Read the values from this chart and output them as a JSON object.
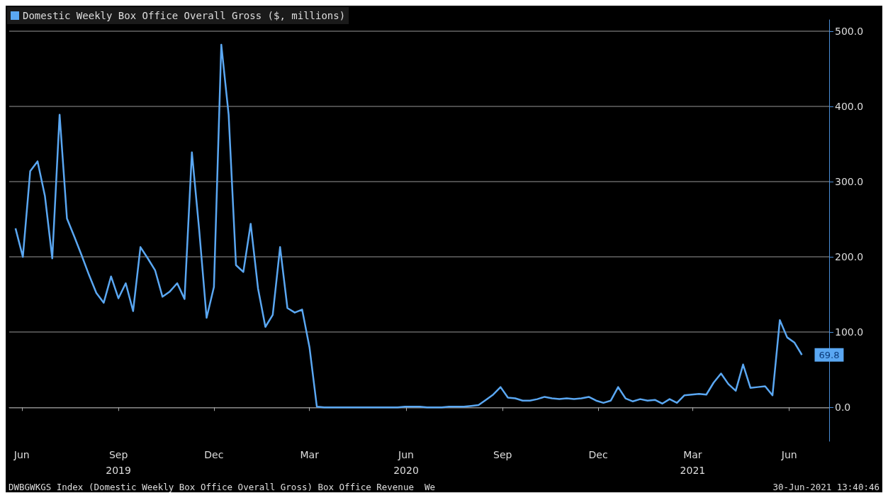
{
  "chart_data": {
    "type": "line",
    "legend": "top left",
    "grid": "y",
    "series": [
      {
        "name": "Domestic Weekly Box Office Overall Gross ($, millions)",
        "color": "#5aa7f2",
        "x": [
          "2019-06-09",
          "2019-06-16",
          "2019-06-23",
          "2019-06-30",
          "2019-07-07",
          "2019-07-14",
          "2019-07-21",
          "2019-07-28",
          "2019-08-04",
          "2019-08-11",
          "2019-08-18",
          "2019-08-25",
          "2019-09-01",
          "2019-09-08",
          "2019-09-15",
          "2019-09-22",
          "2019-09-29",
          "2019-10-06",
          "2019-10-13",
          "2019-10-20",
          "2019-10-27",
          "2019-11-03",
          "2019-11-10",
          "2019-11-17",
          "2019-11-24",
          "2019-12-01",
          "2019-12-08",
          "2019-12-15",
          "2019-12-22",
          "2019-12-29",
          "2020-01-05",
          "2020-01-12",
          "2020-01-19",
          "2020-01-26",
          "2020-02-02",
          "2020-02-09",
          "2020-02-16",
          "2020-02-23",
          "2020-03-01",
          "2020-03-08",
          "2020-03-15",
          "2020-03-22",
          "2020-03-29",
          "2020-04-05",
          "2020-04-12",
          "2020-04-19",
          "2020-04-26",
          "2020-05-03",
          "2020-05-10",
          "2020-05-17",
          "2020-05-24",
          "2020-05-31",
          "2020-06-07",
          "2020-06-14",
          "2020-06-21",
          "2020-06-28",
          "2020-07-05",
          "2020-07-12",
          "2020-07-19",
          "2020-07-26",
          "2020-08-02",
          "2020-08-09",
          "2020-08-16",
          "2020-08-23",
          "2020-08-30",
          "2020-09-06",
          "2020-09-13",
          "2020-09-20",
          "2020-09-27",
          "2020-10-04",
          "2020-10-11",
          "2020-10-18",
          "2020-10-25",
          "2020-11-01",
          "2020-11-08",
          "2020-11-15",
          "2020-11-22",
          "2020-11-29",
          "2020-12-06",
          "2020-12-13",
          "2020-12-20",
          "2020-12-27",
          "2021-01-03",
          "2021-01-10",
          "2021-01-17",
          "2021-01-24",
          "2021-01-31",
          "2021-02-07",
          "2021-02-14",
          "2021-02-21",
          "2021-02-28",
          "2021-03-07",
          "2021-03-14",
          "2021-03-21",
          "2021-03-28",
          "2021-04-04",
          "2021-04-11",
          "2021-04-18",
          "2021-04-25",
          "2021-05-02",
          "2021-05-09",
          "2021-05-16",
          "2021-05-23",
          "2021-05-30",
          "2021-06-06",
          "2021-06-13",
          "2021-06-20",
          "2021-06-27"
        ],
        "values": [
          238,
          200,
          314,
          327,
          281,
          198,
          389,
          251,
          227,
          202,
          176,
          152,
          139,
          174,
          145,
          165,
          128,
          213,
          198,
          182,
          147,
          154,
          165,
          144,
          339,
          235,
          119,
          160,
          482,
          389,
          189,
          180,
          244,
          158,
          107,
          123,
          213,
          132,
          126,
          130,
          80,
          1,
          0,
          0,
          0,
          0,
          0,
          0,
          0,
          0,
          0,
          0,
          0,
          1,
          1,
          1,
          0,
          0,
          0,
          1,
          1,
          1,
          2,
          3,
          10,
          17,
          27,
          13,
          12,
          9,
          9,
          11,
          14,
          12,
          11,
          12,
          11,
          12,
          14,
          9,
          6,
          9,
          27,
          12,
          8,
          11,
          9,
          10,
          5,
          11,
          6,
          16,
          17,
          18,
          17,
          33,
          45,
          31,
          22,
          57,
          26,
          27,
          28,
          16,
          116,
          93,
          86,
          69.8
        ],
        "value_labels": [
          null,
          null,
          null,
          null,
          null,
          null,
          null,
          null,
          null,
          null,
          null,
          null,
          null,
          null,
          null,
          null,
          null,
          null,
          null,
          null,
          null,
          null,
          null,
          null,
          null,
          null,
          null,
          null,
          null,
          null,
          null,
          null,
          null,
          null,
          null,
          null,
          null,
          null,
          null,
          null,
          null,
          null,
          null,
          null,
          null,
          null,
          null,
          null,
          null,
          null,
          null,
          null,
          null,
          null,
          null,
          null,
          null,
          null,
          null,
          null,
          null,
          null,
          null,
          null,
          null,
          null,
          null,
          null,
          null,
          null,
          null,
          null,
          null,
          null,
          null,
          null,
          null,
          null,
          null,
          null,
          null,
          null,
          null,
          null,
          null,
          null,
          null,
          null,
          null,
          null,
          null,
          null,
          null,
          null,
          null,
          null,
          null,
          null,
          null,
          null,
          null,
          null,
          null,
          null,
          null,
          null,
          null,
          "69.8"
        ]
      }
    ],
    "xlim": [
      "2019-06-03",
      "2021-07-23"
    ],
    "xticks": [
      {
        "value": "2019-06-15",
        "label": "Jun"
      },
      {
        "value": "2019-09-15",
        "label": "Sep\n2019"
      },
      {
        "value": "2019-12-15",
        "label": "Dec"
      },
      {
        "value": "2020-03-15",
        "label": "Mar"
      },
      {
        "value": "2020-06-15",
        "label": "Jun\n2020"
      },
      {
        "value": "2020-09-15",
        "label": "Sep"
      },
      {
        "value": "2020-12-15",
        "label": "Dec"
      },
      {
        "value": "2021-03-15",
        "label": "Mar\n2021"
      },
      {
        "value": "2021-06-15",
        "label": "Jun"
      }
    ],
    "ylim": [
      -45,
      515
    ],
    "yticks": [
      {
        "value": 0,
        "label": "0.0"
      },
      {
        "value": 100,
        "label": "100.0"
      },
      {
        "value": 200,
        "label": "200.0"
      },
      {
        "value": 300,
        "label": "300.0"
      },
      {
        "value": 400,
        "label": "400.0"
      },
      {
        "value": 500,
        "label": "500.0"
      }
    ],
    "annotations": [
      "DWBGWKGS Index (Domestic Weekly Box Office Overall Gross) Box Office Revenue  We",
      "30-Jun-2021 13:40:46"
    ]
  }
}
